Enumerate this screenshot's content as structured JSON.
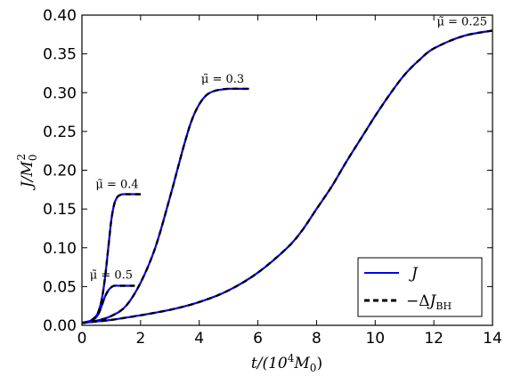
{
  "chart_data": {
    "type": "line",
    "title": "",
    "xlabel": "t/(10^4 M_0)",
    "ylabel": "J/M_0^2",
    "xlim": [
      0,
      14
    ],
    "ylim": [
      0,
      0.4
    ],
    "x_ticks": [
      "0",
      "2",
      "4",
      "6",
      "8",
      "10",
      "12",
      "14"
    ],
    "y_ticks": [
      "0.00",
      "0.05",
      "0.10",
      "0.15",
      "0.20",
      "0.25",
      "0.30",
      "0.35",
      "0.40"
    ],
    "grid": false,
    "legend": {
      "position": "bottom-right",
      "entries": [
        {
          "label": "J",
          "style": "solid",
          "color": "#0000ff"
        },
        {
          "label": "−ΔJ_BH",
          "style": "dashed",
          "color": "#000000"
        }
      ]
    },
    "series": [
      {
        "annotation": "μ̃ = 0.5",
        "x": [
          0,
          0.3,
          0.5,
          0.6,
          0.7,
          0.8,
          0.9,
          1.0,
          1.1,
          1.3,
          1.5,
          1.8
        ],
        "y": [
          0.003,
          0.006,
          0.011,
          0.018,
          0.028,
          0.038,
          0.045,
          0.049,
          0.051,
          0.051,
          0.051,
          0.051
        ]
      },
      {
        "annotation": "μ̃ = 0.4",
        "x": [
          0,
          0.3,
          0.5,
          0.6,
          0.7,
          0.8,
          0.9,
          1.0,
          1.1,
          1.2,
          1.3,
          1.4,
          1.6,
          2.0
        ],
        "y": [
          0.003,
          0.006,
          0.013,
          0.022,
          0.038,
          0.065,
          0.1,
          0.135,
          0.156,
          0.165,
          0.168,
          0.169,
          0.169,
          0.169
        ]
      },
      {
        "annotation": "μ̃ = 0.3",
        "x": [
          0,
          0.5,
          1.0,
          1.5,
          2.0,
          2.5,
          3.0,
          3.25,
          3.5,
          3.75,
          4.0,
          4.25,
          4.5,
          4.75,
          5.0,
          5.5,
          5.7
        ],
        "y": [
          0.003,
          0.006,
          0.012,
          0.025,
          0.055,
          0.1,
          0.165,
          0.2,
          0.235,
          0.265,
          0.285,
          0.297,
          0.302,
          0.304,
          0.305,
          0.305,
          0.305
        ]
      },
      {
        "annotation": "μ̃ = 0.25",
        "x": [
          0,
          0.5,
          1,
          2,
          3,
          4,
          5,
          6,
          7,
          7.5,
          8,
          8.5,
          9,
          9.5,
          10,
          10.5,
          11,
          11.5,
          12,
          13,
          14
        ],
        "y": [
          0.003,
          0.005,
          0.007,
          0.013,
          0.02,
          0.03,
          0.045,
          0.068,
          0.1,
          0.122,
          0.15,
          0.178,
          0.21,
          0.24,
          0.27,
          0.298,
          0.323,
          0.342,
          0.357,
          0.373,
          0.38
        ]
      }
    ]
  }
}
